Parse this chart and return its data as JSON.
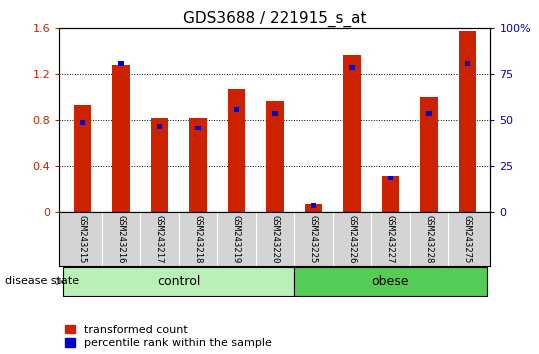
{
  "title": "GDS3688 / 221915_s_at",
  "categories": [
    "GSM243215",
    "GSM243216",
    "GSM243217",
    "GSM243218",
    "GSM243219",
    "GSM243220",
    "GSM243225",
    "GSM243226",
    "GSM243227",
    "GSM243228",
    "GSM243275"
  ],
  "red_values": [
    0.93,
    1.28,
    0.82,
    0.82,
    1.07,
    0.97,
    0.07,
    1.37,
    0.32,
    1.0,
    1.58
  ],
  "blue_values_pct": [
    50,
    82,
    48,
    47,
    57,
    55,
    5,
    80,
    20,
    55,
    82
  ],
  "ylim_left": [
    0,
    1.6
  ],
  "ylim_right": [
    0,
    100
  ],
  "yticks_left": [
    0,
    0.4,
    0.8,
    1.2,
    1.6
  ],
  "ytick_labels_left": [
    "0",
    "0.4",
    "0.8",
    "1.2",
    "1.6"
  ],
  "yticks_right": [
    0,
    25,
    50,
    75,
    100
  ],
  "ytick_labels_right": [
    "0",
    "25",
    "50",
    "75",
    "100%"
  ],
  "group_labels": [
    "control",
    "obese"
  ],
  "control_color": "#b8f0b8",
  "obese_color": "#55cc55",
  "bar_color_red": "#CC2200",
  "bar_color_blue": "#0000CC",
  "disease_state_label": "disease state",
  "legend_red": "transformed count",
  "legend_blue": "percentile rank within the sample",
  "red_bar_width": 0.45,
  "blue_bar_width": 0.15,
  "tick_area_color": "#D4D4D4",
  "title_fontsize": 11,
  "legend_fontsize": 8
}
